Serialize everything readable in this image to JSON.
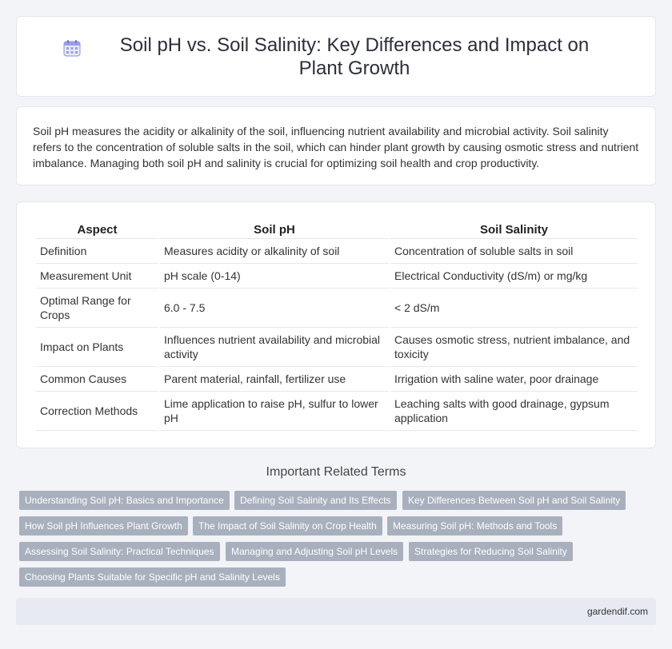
{
  "header": {
    "title": "Soil pH vs. Soil Salinity: Key Differences and Impact on Plant Growth",
    "icon": "calendar-icon"
  },
  "intro": {
    "text": "Soil pH measures the acidity or alkalinity of the soil, influencing nutrient availability and microbial activity. Soil salinity refers to the concentration of soluble salts in the soil, which can hinder plant growth by causing osmotic stress and nutrient imbalance. Managing both soil pH and salinity is crucial for optimizing soil health and crop productivity."
  },
  "table": {
    "headers": [
      "Aspect",
      "Soil pH",
      "Soil Salinity"
    ],
    "rows": [
      [
        "Definition",
        "Measures acidity or alkalinity of soil",
        "Concentration of soluble salts in soil"
      ],
      [
        "Measurement Unit",
        "pH scale (0-14)",
        "Electrical Conductivity (dS/m) or mg/kg"
      ],
      [
        "Optimal Range for Crops",
        "6.0 - 7.5",
        "< 2 dS/m"
      ],
      [
        "Impact on Plants",
        "Influences nutrient availability and microbial activity",
        "Causes osmotic stress, nutrient imbalance, and toxicity"
      ],
      [
        "Common Causes",
        "Parent material, rainfall, fertilizer use",
        "Irrigation with saline water, poor drainage"
      ],
      [
        "Correction Methods",
        "Lime application to raise pH, sulfur to lower pH",
        "Leaching salts with good drainage, gypsum application"
      ]
    ]
  },
  "related": {
    "title": "Important Related Terms",
    "tags": [
      "Understanding Soil pH: Basics and Importance",
      "Defining Soil Salinity and Its Effects",
      "Key Differences Between Soil pH and Soil Salinity",
      "How Soil pH Influences Plant Growth",
      "The Impact of Soil Salinity on Crop Health",
      "Measuring Soil pH: Methods and Tools",
      "Assessing Soil Salinity: Practical Techniques",
      "Managing and Adjusting Soil pH Levels",
      "Strategies for Reducing Soil Salinity",
      "Choosing Plants Suitable for Specific pH and Salinity Levels"
    ]
  },
  "footer": {
    "site": "gardendif.com"
  },
  "colors": {
    "accent": "#7b7fd6",
    "tag_bg": "#a9b0bd",
    "page_bg": "#f3f4f8"
  }
}
